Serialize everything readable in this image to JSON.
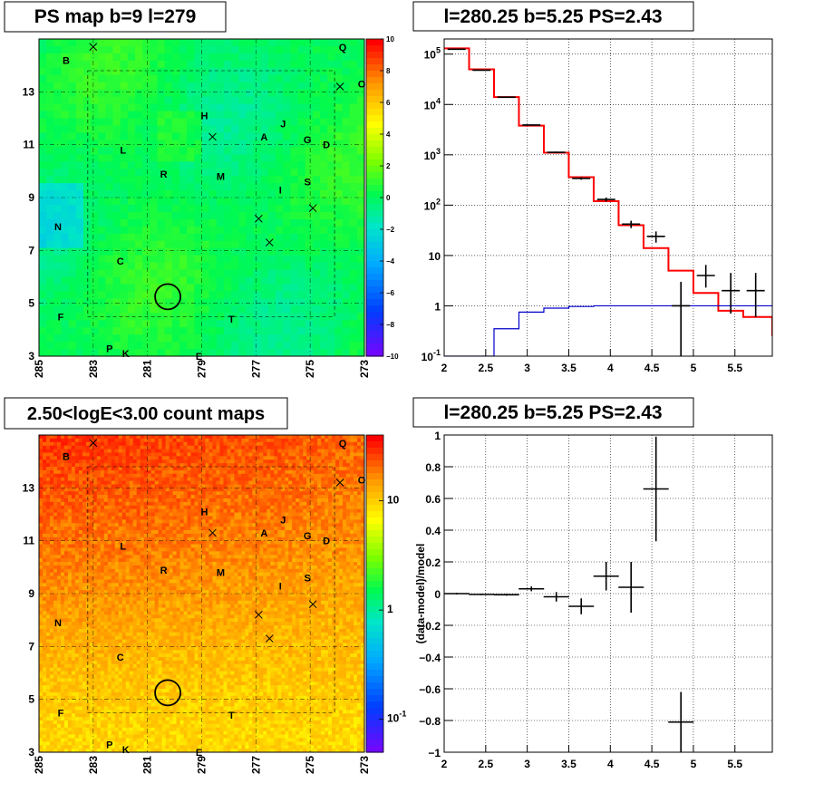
{
  "panels": {
    "top_left_title": "PS map b=9 l=279",
    "top_right_title": "l=280.25 b=5.25 PS=2.43",
    "bottom_left_title": "2.50<logE<3.00 count maps",
    "bottom_right_title": "l=280.25 b=5.25 PS=2.43"
  },
  "chart_data": [
    {
      "type": "heatmap",
      "title": "PS map b=9 l=279",
      "x_tick_labels": [
        "285",
        "283",
        "281",
        "279",
        "277",
        "275",
        "273"
      ],
      "y_tick_labels": [
        "3",
        "5",
        "7",
        "9",
        "11",
        "13"
      ],
      "xlim": [
        285,
        273
      ],
      "ylim": [
        3,
        15
      ],
      "colorbar": {
        "range": [
          -10,
          10
        ],
        "ticks": [
          "10",
          "8",
          "6",
          "4",
          "2",
          "0",
          "−2",
          "−4",
          "−6",
          "−8",
          "−10"
        ]
      },
      "sources": [
        {
          "label": "B",
          "l": 284.0,
          "b": 14.2
        },
        {
          "label": "Q",
          "l": 273.8,
          "b": 14.7
        },
        {
          "label": "O",
          "l": 273.1,
          "b": 13.3
        },
        {
          "label": "H",
          "l": 278.9,
          "b": 12.1
        },
        {
          "label": "J",
          "l": 276.0,
          "b": 11.8
        },
        {
          "label": "A",
          "l": 276.7,
          "b": 11.3
        },
        {
          "label": "G",
          "l": 275.1,
          "b": 11.2
        },
        {
          "label": "D",
          "l": 274.4,
          "b": 11.0
        },
        {
          "label": "L",
          "l": 281.9,
          "b": 10.8
        },
        {
          "label": "R",
          "l": 280.4,
          "b": 9.9
        },
        {
          "label": "M",
          "l": 278.3,
          "b": 9.8
        },
        {
          "label": "S",
          "l": 275.1,
          "b": 9.6
        },
        {
          "label": "I",
          "l": 276.1,
          "b": 9.3
        },
        {
          "label": "N",
          "l": 284.3,
          "b": 7.9
        },
        {
          "label": "C",
          "l": 282.0,
          "b": 6.6
        },
        {
          "label": "F",
          "l": 284.2,
          "b": 4.5
        },
        {
          "label": "T",
          "l": 277.9,
          "b": 4.4
        },
        {
          "label": "P",
          "l": 282.4,
          "b": 3.3
        },
        {
          "label": "K",
          "l": 281.8,
          "b": 3.1
        },
        {
          "label": "E",
          "l": 279.1,
          "b": 3.0
        }
      ],
      "crosses": [
        {
          "l": 283.0,
          "b": 14.7
        },
        {
          "l": 273.9,
          "b": 13.2
        },
        {
          "l": 278.6,
          "b": 11.3
        },
        {
          "l": 276.9,
          "b": 8.2
        },
        {
          "l": 274.9,
          "b": 8.6
        },
        {
          "l": 276.5,
          "b": 7.3
        }
      ],
      "circle": {
        "l": 280.25,
        "b": 5.25
      }
    },
    {
      "type": "line",
      "title": "l=280.25 b=5.25 PS=2.43",
      "x_scale": "linear",
      "y_scale": "log",
      "xlim": [
        2.0,
        5.95
      ],
      "ylim": [
        0.1,
        200000
      ],
      "x_tick_labels": [
        "2",
        "2.5",
        "3",
        "3.5",
        "4",
        "4.5",
        "5",
        "5.5"
      ],
      "y_tick_labels": [
        "10^-1",
        "1",
        "10",
        "10^2",
        "10^3",
        "10^4",
        "10^5"
      ],
      "bin_edges": [
        2.0,
        2.3,
        2.6,
        2.9,
        3.2,
        3.5,
        3.8,
        4.1,
        4.4,
        4.7,
        5.0,
        5.3,
        5.6,
        5.95
      ],
      "series": [
        {
          "color": "#ff0000",
          "style": "step",
          "values": [
            130000,
            50000,
            14000,
            3800,
            1100,
            360,
            120,
            40,
            14,
            5,
            1.8,
            0.8,
            0.6,
            0.25
          ]
        },
        {
          "color": "#0000cc",
          "style": "step",
          "values": [
            0.1,
            0.1,
            0.35,
            0.75,
            0.9,
            0.97,
            1.0,
            1.0,
            1.0,
            1.0,
            1.0,
            1.0,
            1.0,
            1.0
          ]
        },
        {
          "color": "#000000",
          "style": "errorbars",
          "points": [
            {
              "x": 2.15,
              "y": 125000,
              "lo": 124000,
              "hi": 126000
            },
            {
              "x": 2.45,
              "y": 48000,
              "lo": 47500,
              "hi": 48500
            },
            {
              "x": 2.75,
              "y": 14000,
              "lo": 13800,
              "hi": 14200
            },
            {
              "x": 3.05,
              "y": 3900,
              "lo": 3800,
              "hi": 4000
            },
            {
              "x": 3.35,
              "y": 1120,
              "lo": 1080,
              "hi": 1160
            },
            {
              "x": 3.65,
              "y": 340,
              "lo": 320,
              "hi": 360
            },
            {
              "x": 3.95,
              "y": 130,
              "lo": 118,
              "hi": 142
            },
            {
              "x": 4.25,
              "y": 42,
              "lo": 35,
              "hi": 49
            },
            {
              "x": 4.55,
              "y": 24,
              "lo": 18,
              "hi": 30
            },
            {
              "x": 4.85,
              "y": 1.0,
              "lo": 0.1,
              "hi": 3.0
            },
            {
              "x": 5.15,
              "y": 4.0,
              "lo": 2.3,
              "hi": 6.5
            },
            {
              "x": 5.45,
              "y": 2.0,
              "lo": 0.7,
              "hi": 4.5
            },
            {
              "x": 5.75,
              "y": 2.0,
              "lo": 0.6,
              "hi": 4.5
            }
          ]
        }
      ]
    },
    {
      "type": "heatmap",
      "title": "2.50<logE<3.00 count maps",
      "x_tick_labels": [
        "285",
        "283",
        "281",
        "279",
        "277",
        "275",
        "273"
      ],
      "y_tick_labels": [
        "3",
        "5",
        "7",
        "9",
        "11",
        "13"
      ],
      "xlim": [
        285,
        273
      ],
      "ylim": [
        3,
        15
      ],
      "colorbar": {
        "scale": "log",
        "range": [
          0.05,
          40
        ],
        "ticks": [
          "10",
          "1",
          "10^-1"
        ]
      },
      "sources_same_as_first_map": true,
      "circle": {
        "l": 280.25,
        "b": 5.25
      }
    },
    {
      "type": "scatter",
      "title": "l=280.25 b=5.25 PS=2.43",
      "ylabel": "(data-model)/model",
      "xlim": [
        2.0,
        5.95
      ],
      "ylim": [
        -1.0,
        1.0
      ],
      "x_tick_labels": [
        "2",
        "2.5",
        "3",
        "3.5",
        "4",
        "4.5",
        "5",
        "5.5"
      ],
      "y_tick_labels": [
        "1",
        "0.8",
        "0.6",
        "0.4",
        "0.2",
        "0",
        "−0.2",
        "−0.4",
        "−0.6",
        "−0.8",
        "−1"
      ],
      "points": [
        {
          "x": 2.15,
          "y": 0.0,
          "err": 0.005
        },
        {
          "x": 2.45,
          "y": -0.005,
          "err": 0.005
        },
        {
          "x": 2.75,
          "y": -0.007,
          "err": 0.006
        },
        {
          "x": 3.05,
          "y": 0.03,
          "err": 0.015
        },
        {
          "x": 3.35,
          "y": -0.02,
          "err": 0.03
        },
        {
          "x": 3.65,
          "y": -0.08,
          "err": 0.05
        },
        {
          "x": 3.95,
          "y": 0.11,
          "err": 0.09
        },
        {
          "x": 4.25,
          "y": 0.04,
          "err": 0.16
        },
        {
          "x": 4.55,
          "y": 0.66,
          "err": 0.33
        },
        {
          "x": 4.85,
          "y": -0.81,
          "err": 0.19
        }
      ]
    }
  ]
}
